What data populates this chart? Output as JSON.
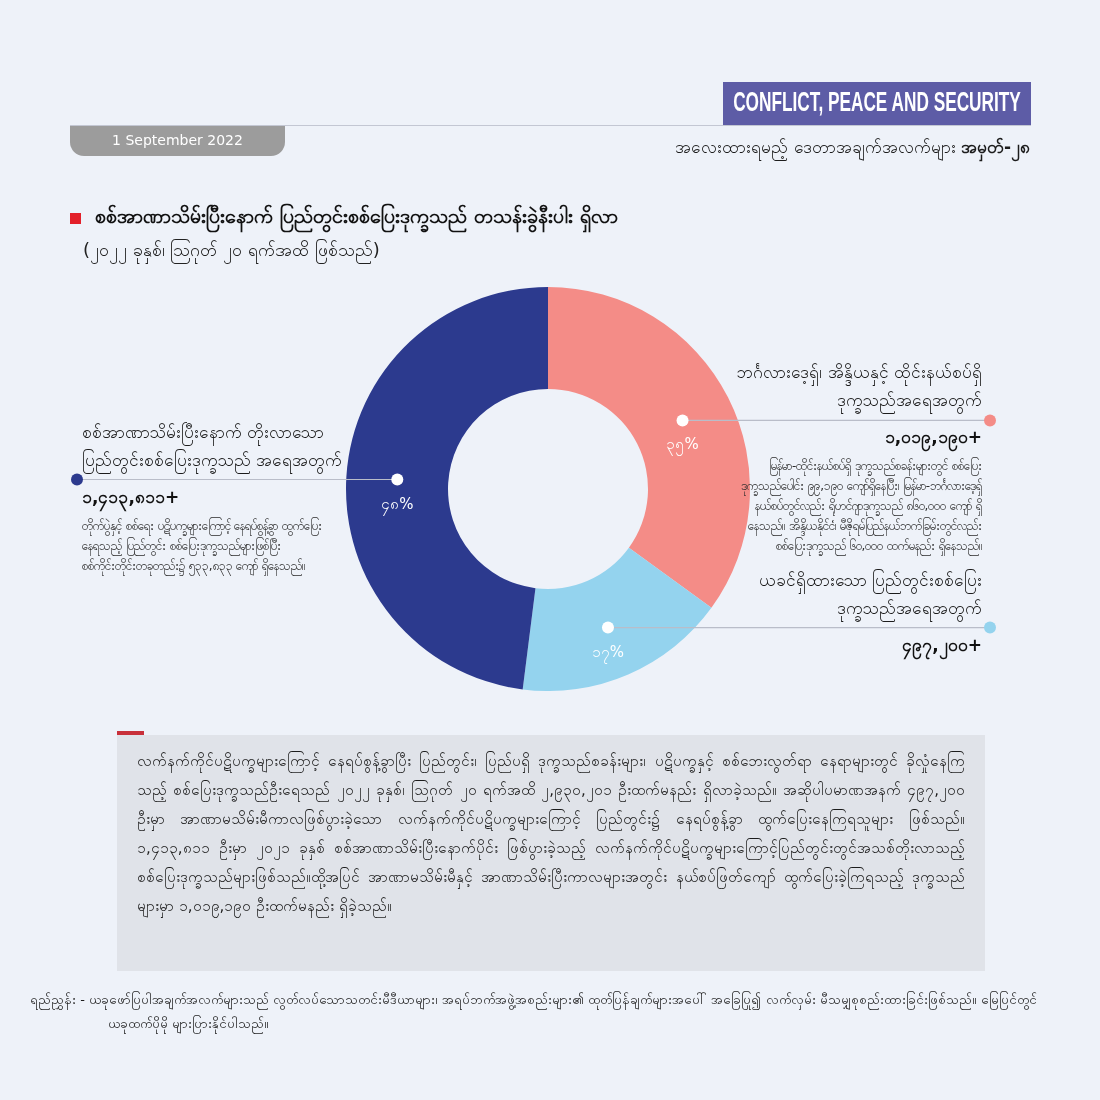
{
  "chart_data": {
    "type": "donut",
    "title": "စစ်အာဏာသိမ်းပြီးနောက် ပြည်တွင်းစစ်ပြေးဒုက္ခသည် တသန်းခွဲနီးပါး ရှိလာ",
    "subtitle": "(၂၀၂၂ ခုနှစ်၊ ဩဂုတ် ၂၀ ရက်အထိ ဖြစ်သည်)",
    "categories": [
      "ဘင်္ဂလားဒေ့ရှ်၊ အိန္ဒိယနှင့် ထိုင်းနယ်စပ်ရှိ ဒုက္ခသည်အရေအတွက်",
      "ယခင်ရှိထားသော ပြည်တွင်းစစ်ပြေးဒုက္ခသည်အရေအတွက်",
      "စစ်အာဏာသိမ်းပြီးနောက် တိုးလာသော ပြည်တွင်းစစ်ပြေးဒုက္ခသည် အရေအတွက်"
    ],
    "values": [
      35,
      17,
      48
    ],
    "value_labels": [
      "၃၅%",
      "၁၇%",
      "၄၈%"
    ],
    "colors": [
      "#f48c87",
      "#94d3ee",
      "#2c3a8e"
    ],
    "annotations": [
      "1 September 2022",
      "CONFLICT, PEACE AND SECURITY",
      "အလေးထားရမည့် ဒေတာအချက်အလက်များ အမှတ်-၂၈",
      "၁,၀၁၉,၁၉၀+",
      "မြန်မာ-ထိုင်းနယ်စပ်ရှိ ဒုက္ခသည်စခန်းများတွင် စစ်ပြေးဒုက္ခသည်ပေါင်း ၉၉,၁၉၀ ကျော်ရှိနေပြီး၊ မြန်မာ-ဘင်္ဂလားဒေ့ရှ်နယ်စပ်တွင်လည်း ရိုဟင်ဂျာဒုက္ခသည် ၈၆၀,၀၀၀ ကျော် ရှိနေသည်။ အိန္ဒိယနိုင်ငံ၊ မီဇိုရမ်ပြည်နယ်ဘက်ခြမ်းတွင်လည်း စစ်ပြေးဒုက္ခသည် ၆၀,၀၀၀ ထက်မနည်း ရှိနေသည်။",
      "၄၉၇,၂၀၀+",
      "၁,၄၁၃,၈၁၁+",
      "တိုက်ပွဲနှင့် စစ်ရေး ပဋိပက္ခများကြောင့် နေရပ်စွန့်ခွာ ထွက်ပြေးနေရသည့် ပြည်တွင်း စစ်ပြေးဒုက္ခသည်များဖြစ်ပြီး စစ်ကိုင်းတိုင်းတခုတည်း၌ ၅၃၃,၈၃၃ ကျော် ရှိနေသည်။",
      "လက်နက်ကိုင်ပဋိပက္ခများကြောင့် နေရပ်စွန့်ခွာပြီး ပြည်တွင်း၊ ပြည်ပရှိ ဒုက္ခသည်စခန်းများ၊ ပဋိပက္ခနှင့် စစ်ဘေးလွတ်ရာ နေရာများတွင် ခိုလှုံနေကြသည့် စစ်ပြေးဒုက္ခသည်ဦးရေသည် ၂၀၂၂ ခုနှစ်၊ ဩဂုတ် ၂၀ ရက်အထိ ၂,၉၃၀,၂၀၁ ဦးထက်မနည်း ရှိလာခဲ့သည်။ အဆိုပါပမာဏအနက် ၄၉၇,၂၀၀ ဦးမှာ အာဏာမသိမ်းမီကာလဖြစ်ပွားခဲ့သော လက်နက်ကိုင်ပဋိပက္ခများကြောင့် ပြည်တွင်း၌ နေရပ်စွန့်ခွာ ထွက်ပြေးနေကြရသူများ ဖြစ်သည်။ ၁,၄၁၃,၈၁၁ ဦးမှာ ၂၀၂၁ ခုနှစ် စစ်အာဏာသိမ်းပြီးနောက်ပိုင်း ဖြစ်ပွားခဲ့သည့် လက်နက်ကိုင်ပဋိပက္ခများကြောင့်ပြည်တွင်းတွင်အသစ်တိုးလာသည့်စစ်ပြေးဒုက္ခသည်များဖြစ်သည်။ထို့အပြင် အာဏာမသိမ်းမီနှင့် အာဏာသိမ်းပြီးကာလများအတွင်း နယ်စပ်ဖြတ်ကျော် ထွက်ပြေးခဲ့ကြရသည့် ဒုက္ခသည်များမှာ ၁,၀၁၉,၁၉၀ ဦးထက်မနည်း ရှိခဲ့သည်။",
      "ရည်ညွှန်း - ယခုဖော်ပြပါအချက်အလက်များသည် လွတ်လပ်သောသတင်းမီဒီယာများ၊ အရပ်ဘက်အဖွဲ့အစည်းများ၏ ထုတ်ပြန်ချက်များအပေါ် အခြေပြု၍ လက်လှမ်း မီသမျှစုစည်းထားခြင်းဖြစ်သည်။ မြေပြင်တွင် ယခုထက်ပိုမို များပြားနိုင်ပါသည်။"
    ]
  }
}
